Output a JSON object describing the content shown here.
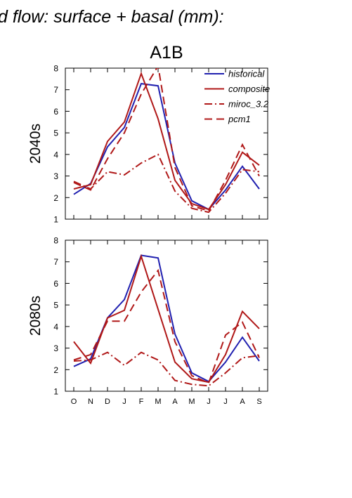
{
  "page_title": "d flow: surface + basal (mm):",
  "chart_data": [
    {
      "type": "line",
      "title": "A1B",
      "ylabel": "2040s",
      "categories": [
        "O",
        "N",
        "D",
        "J",
        "F",
        "M",
        "A",
        "M",
        "J",
        "J",
        "A",
        "S"
      ],
      "ylim": [
        1,
        8
      ],
      "yticks": [
        1,
        2,
        3,
        4,
        5,
        6,
        7,
        8
      ],
      "grid": false,
      "legend_position": "top-right",
      "series": [
        {
          "name": "historical",
          "color": "#2020b0",
          "dash": "solid",
          "values": [
            2.15,
            2.65,
            4.35,
            5.25,
            7.28,
            7.18,
            3.6,
            1.85,
            1.45,
            2.35,
            3.45,
            2.4
          ]
        },
        {
          "name": "composite",
          "color": "#b01818",
          "dash": "solid",
          "values": [
            2.4,
            2.6,
            4.6,
            5.5,
            7.75,
            5.65,
            2.8,
            1.72,
            1.45,
            2.6,
            4.1,
            3.5
          ]
        },
        {
          "name": "miroc_3.2",
          "color": "#b01818",
          "dash": "dashdot",
          "values": [
            2.75,
            2.4,
            3.2,
            3.05,
            3.6,
            4.0,
            2.3,
            1.5,
            1.32,
            2.2,
            3.3,
            3.2
          ]
        },
        {
          "name": "pcm1",
          "color": "#b01818",
          "dash": "dash",
          "values": [
            2.7,
            2.35,
            3.8,
            5.0,
            6.8,
            8.1,
            3.4,
            1.62,
            1.38,
            2.8,
            4.45,
            3.0
          ]
        }
      ]
    },
    {
      "type": "line",
      "title": "",
      "ylabel": "2080s",
      "categories": [
        "O",
        "N",
        "D",
        "J",
        "F",
        "M",
        "A",
        "M",
        "J",
        "J",
        "A",
        "S"
      ],
      "ylim": [
        1,
        8
      ],
      "yticks": [
        1,
        2,
        3,
        4,
        5,
        6,
        7,
        8
      ],
      "grid": false,
      "series": [
        {
          "name": "historical",
          "color": "#2020b0",
          "dash": "solid",
          "values": [
            2.15,
            2.5,
            4.4,
            5.25,
            7.3,
            7.18,
            3.65,
            1.85,
            1.45,
            2.35,
            3.5,
            2.4
          ]
        },
        {
          "name": "composite",
          "color": "#b01818",
          "dash": "solid",
          "values": [
            3.3,
            2.3,
            4.4,
            4.75,
            7.25,
            4.8,
            2.35,
            1.58,
            1.42,
            2.7,
            4.7,
            3.9
          ]
        },
        {
          "name": "miroc_3.2",
          "color": "#b01818",
          "dash": "dashdot",
          "values": [
            2.4,
            2.45,
            2.8,
            2.2,
            2.8,
            2.45,
            1.5,
            1.32,
            1.25,
            1.85,
            2.55,
            2.65
          ]
        },
        {
          "name": "pcm1",
          "color": "#b01818",
          "dash": "dash",
          "values": [
            2.45,
            2.7,
            4.25,
            4.25,
            5.6,
            6.6,
            3.3,
            1.72,
            1.38,
            3.6,
            4.2,
            2.55
          ]
        }
      ]
    }
  ]
}
